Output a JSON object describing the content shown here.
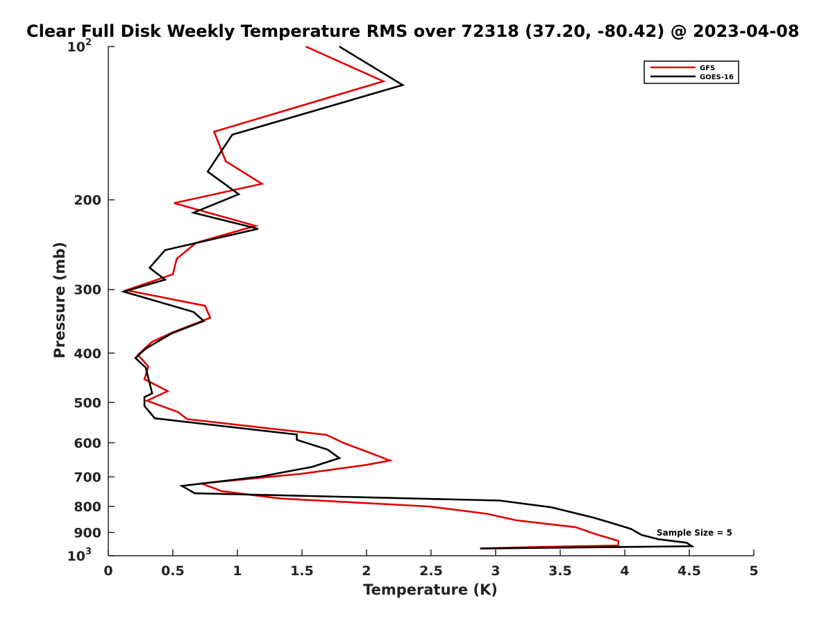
{
  "chart_data": {
    "type": "line",
    "title": "Clear Full Disk Weekly Temperature RMS over 72318 (37.20, -80.42) @ 2023-04-08",
    "xlabel": "Temperature (K)",
    "ylabel": "Pressure (mb)",
    "xlim": [
      0,
      5
    ],
    "ylim": [
      100,
      1000
    ],
    "y_scale": "log",
    "y_reversed": true,
    "grid": false,
    "legend_position": "top-right",
    "x_ticks": [
      "0",
      "0.5",
      "1",
      "1.5",
      "2",
      "2.5",
      "3",
      "3.5",
      "4",
      "4.5",
      "5"
    ],
    "y_ticks": [
      {
        "value": 100,
        "base": "10",
        "exp": "2"
      },
      {
        "value": 200,
        "label": "200"
      },
      {
        "value": 300,
        "label": "300"
      },
      {
        "value": 400,
        "label": "400"
      },
      {
        "value": 500,
        "label": "500"
      },
      {
        "value": 600,
        "label": "600"
      },
      {
        "value": 700,
        "label": "700"
      },
      {
        "value": 800,
        "label": "800"
      },
      {
        "value": 900,
        "label": "900"
      },
      {
        "value": 1000,
        "base": "10",
        "exp": "3"
      }
    ],
    "annotation": "Sample Size = 5",
    "series": [
      {
        "name": "GFS",
        "color": "#e00000",
        "points": [
          [
            1.53,
            100
          ],
          [
            2.13,
            117
          ],
          [
            0.82,
            147
          ],
          [
            0.91,
            168
          ],
          [
            1.19,
            186
          ],
          [
            0.51,
            203
          ],
          [
            1.14,
            225
          ],
          [
            0.68,
            243
          ],
          [
            0.53,
            261
          ],
          [
            0.5,
            280
          ],
          [
            0.14,
            301
          ],
          [
            0.75,
            323
          ],
          [
            0.79,
            341
          ],
          [
            0.5,
            364
          ],
          [
            0.34,
            380
          ],
          [
            0.23,
            403
          ],
          [
            0.31,
            425
          ],
          [
            0.28,
            450
          ],
          [
            0.46,
            475
          ],
          [
            0.3,
            496
          ],
          [
            0.54,
            522
          ],
          [
            0.61,
            539
          ],
          [
            1.69,
            579
          ],
          [
            1.82,
            600
          ],
          [
            2.02,
            627
          ],
          [
            2.18,
            650
          ],
          [
            2.0,
            663
          ],
          [
            1.5,
            690
          ],
          [
            0.72,
            721
          ],
          [
            0.88,
            747
          ],
          [
            1.33,
            772
          ],
          [
            2.48,
            800
          ],
          [
            2.93,
            827
          ],
          [
            3.16,
            852
          ],
          [
            3.62,
            879
          ],
          [
            3.77,
            906
          ],
          [
            3.95,
            935
          ],
          [
            3.95,
            955
          ],
          [
            3.34,
            961
          ],
          [
            2.88,
            968
          ]
        ]
      },
      {
        "name": "GOES-16",
        "color": "#000000",
        "points": [
          [
            1.79,
            100
          ],
          [
            2.28,
            119
          ],
          [
            0.96,
            149
          ],
          [
            0.77,
            176
          ],
          [
            1.01,
            195
          ],
          [
            0.66,
            212
          ],
          [
            1.16,
            228
          ],
          [
            0.44,
            251
          ],
          [
            0.32,
            272
          ],
          [
            0.44,
            287
          ],
          [
            0.12,
            303
          ],
          [
            0.66,
            332
          ],
          [
            0.74,
            346
          ],
          [
            0.49,
            366
          ],
          [
            0.29,
            392
          ],
          [
            0.21,
            409
          ],
          [
            0.29,
            427
          ],
          [
            0.34,
            480
          ],
          [
            0.28,
            488
          ],
          [
            0.28,
            508
          ],
          [
            0.36,
            537
          ],
          [
            1.46,
            578
          ],
          [
            1.46,
            592
          ],
          [
            1.7,
            619
          ],
          [
            1.79,
            643
          ],
          [
            1.58,
            669
          ],
          [
            1.18,
            699
          ],
          [
            0.57,
            729
          ],
          [
            0.67,
            754
          ],
          [
            3.03,
            779
          ],
          [
            3.43,
            803
          ],
          [
            3.76,
            842
          ],
          [
            3.95,
            870
          ],
          [
            4.05,
            886
          ],
          [
            4.13,
            910
          ],
          [
            4.26,
            928
          ],
          [
            4.48,
            943
          ],
          [
            4.52,
            958
          ],
          [
            2.88,
            968
          ]
        ]
      }
    ]
  }
}
